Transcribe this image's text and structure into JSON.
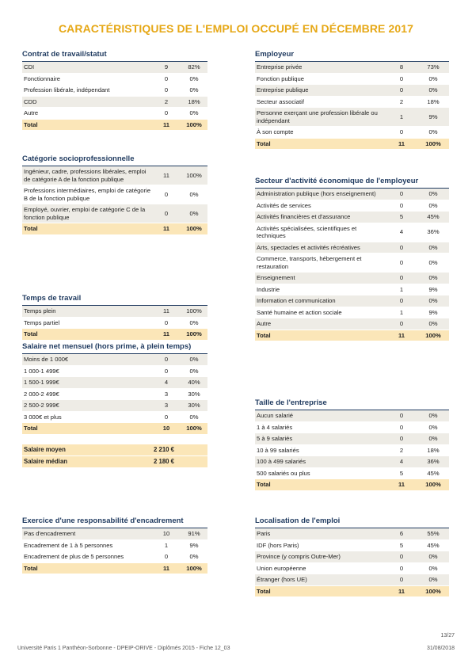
{
  "title": "CARACTÉRISTIQUES DE L'EMPLOI OCCUPÉ EN DÉCEMBRE 2017",
  "left": [
    {
      "title": "Contrat de travail/statut",
      "rows": [
        {
          "label": "CDI",
          "count": "9",
          "pct": "82%"
        },
        {
          "label": "Fonctionnaire",
          "count": "0",
          "pct": "0%"
        },
        {
          "label": "Profession libérale, indépendant",
          "count": "0",
          "pct": "0%"
        },
        {
          "label": "CDD",
          "count": "2",
          "pct": "18%"
        },
        {
          "label": "Autre",
          "count": "0",
          "pct": "0%"
        },
        {
          "label": "Total",
          "count": "11",
          "pct": "100%",
          "total": true
        }
      ]
    },
    {
      "title": "Catégorie socioprofessionnelle",
      "rows": [
        {
          "label": "Ingénieur, cadre, professions libérales, emploi de catégorie A de la fonction publique",
          "count": "11",
          "pct": "100%"
        },
        {
          "label": "Professions intermédiaires, emploi de catégorie B de la fonction publique",
          "count": "0",
          "pct": "0%"
        },
        {
          "label": "Employé, ouvrier, emploi de catégorie C de la fonction publique",
          "count": "0",
          "pct": "0%"
        },
        {
          "label": "Total",
          "count": "11",
          "pct": "100%",
          "total": true
        }
      ]
    },
    {
      "title": "Temps de travail",
      "rows": [
        {
          "label": "Temps plein",
          "count": "11",
          "pct": "100%"
        },
        {
          "label": "Temps partiel",
          "count": "0",
          "pct": "0%"
        },
        {
          "label": "Total",
          "count": "11",
          "pct": "100%",
          "total": true
        }
      ]
    },
    {
      "title": "Salaire net mensuel (hors prime, à plein temps)",
      "rows": [
        {
          "label": "Moins de 1 000€",
          "count": "0",
          "pct": "0%"
        },
        {
          "label": "1 000-1 499€",
          "count": "0",
          "pct": "0%"
        },
        {
          "label": "1 500-1 999€",
          "count": "4",
          "pct": "40%"
        },
        {
          "label": "2 000-2 499€",
          "count": "3",
          "pct": "30%"
        },
        {
          "label": "2 500-2 999€",
          "count": "3",
          "pct": "30%"
        },
        {
          "label": "3 000€ et plus",
          "count": "0",
          "pct": "0%"
        },
        {
          "label": "Total",
          "count": "10",
          "pct": "100%",
          "total": true
        }
      ],
      "summary": [
        {
          "label": "Salaire moyen",
          "value": "2 210 €"
        },
        {
          "label": "Salaire médian",
          "value": "2 180 €"
        }
      ]
    },
    {
      "title": "Exercice d'une responsabilité d'encadrement",
      "rows": [
        {
          "label": "Pas d'encadrement",
          "count": "10",
          "pct": "91%"
        },
        {
          "label": "Encadrement de 1 à 5 personnes",
          "count": "1",
          "pct": "9%"
        },
        {
          "label": "Encadrement de plus de 5 personnes",
          "count": "0",
          "pct": "0%"
        },
        {
          "label": "Total",
          "count": "11",
          "pct": "100%",
          "total": true
        }
      ]
    }
  ],
  "right": [
    {
      "title": "Employeur",
      "rows": [
        {
          "label": "Entreprise privée",
          "count": "8",
          "pct": "73%"
        },
        {
          "label": "Fonction publique",
          "count": "0",
          "pct": "0%"
        },
        {
          "label": "Entreprise publique",
          "count": "0",
          "pct": "0%"
        },
        {
          "label": "Secteur associatif",
          "count": "2",
          "pct": "18%"
        },
        {
          "label": "Personne exerçant une profession libérale ou indépendant",
          "count": "1",
          "pct": "9%"
        },
        {
          "label": "À son compte",
          "count": "0",
          "pct": "0%"
        },
        {
          "label": "Total",
          "count": "11",
          "pct": "100%",
          "total": true
        }
      ]
    },
    {
      "title": "Secteur d'activité économique de l'employeur",
      "rows": [
        {
          "label": "Administration publique (hors enseignement)",
          "count": "0",
          "pct": "0%"
        },
        {
          "label": "Activités de services",
          "count": "0",
          "pct": "0%"
        },
        {
          "label": "Activités financières et d'assurance",
          "count": "5",
          "pct": "45%"
        },
        {
          "label": "Activités spécialisées, scientifiques et techniques",
          "count": "4",
          "pct": "36%"
        },
        {
          "label": "Arts, spectacles et activités récréatives",
          "count": "0",
          "pct": "0%"
        },
        {
          "label": "Commerce, transports, hébergement et restauration",
          "count": "0",
          "pct": "0%"
        },
        {
          "label": "Enseignement",
          "count": "0",
          "pct": "0%"
        },
        {
          "label": "Industrie",
          "count": "1",
          "pct": "9%"
        },
        {
          "label": "Information et communication",
          "count": "0",
          "pct": "0%"
        },
        {
          "label": "Santé humaine et action sociale",
          "count": "1",
          "pct": "9%"
        },
        {
          "label": "Autre",
          "count": "0",
          "pct": "0%"
        },
        {
          "label": "Total",
          "count": "11",
          "pct": "100%",
          "total": true
        }
      ]
    },
    {
      "title": "Taille de l'entreprise",
      "rows": [
        {
          "label": "Aucun salarié",
          "count": "0",
          "pct": "0%"
        },
        {
          "label": "1 à 4 salariés",
          "count": "0",
          "pct": "0%"
        },
        {
          "label": "5 à 9 salariés",
          "count": "0",
          "pct": "0%"
        },
        {
          "label": "10 à 99 salariés",
          "count": "2",
          "pct": "18%"
        },
        {
          "label": "100 à 499 salariés",
          "count": "4",
          "pct": "36%"
        },
        {
          "label": "500 salariés ou plus",
          "count": "5",
          "pct": "45%"
        },
        {
          "label": "Total",
          "count": "11",
          "pct": "100%",
          "total": true
        }
      ]
    },
    {
      "title": "Localisation de l'emploi",
      "rows": [
        {
          "label": "Paris",
          "count": "6",
          "pct": "55%"
        },
        {
          "label": "IDF (hors Paris)",
          "count": "5",
          "pct": "45%"
        },
        {
          "label": "Province (y compris Outre-Mer)",
          "count": "0",
          "pct": "0%"
        },
        {
          "label": "Union européenne",
          "count": "0",
          "pct": "0%"
        },
        {
          "label": "Étranger (hors UE)",
          "count": "0",
          "pct": "0%"
        },
        {
          "label": "Total",
          "count": "11",
          "pct": "100%",
          "total": true
        }
      ]
    }
  ],
  "footer": {
    "left": "Université Paris 1 Panthéon-Sorbonne - DPEIP-ORIVE - Diplômés 2015 - Fiche 12_03",
    "date": "31/08/2018",
    "page": "13/27"
  }
}
